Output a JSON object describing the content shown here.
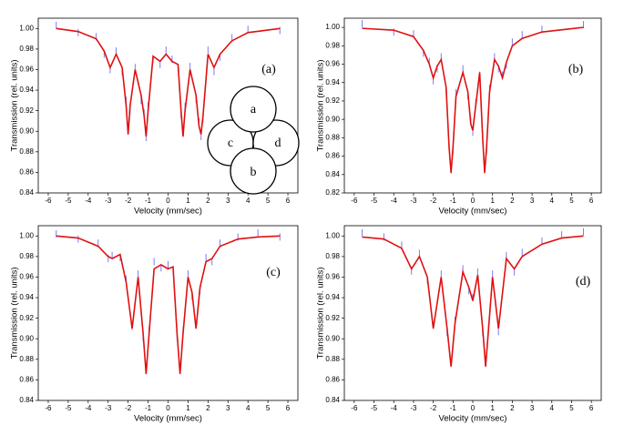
{
  "chart_data": [
    {
      "type": "line",
      "annotation": "(a)",
      "x_label": "Velocity (mm/sec)",
      "y_label": "Transmission (rel. units)",
      "inset_labels": [
        "a",
        "c",
        "d",
        "b"
      ],
      "xlim": [
        -6.5,
        6.5
      ],
      "xticks": [
        -6,
        -5,
        -4,
        -3,
        -2,
        -1,
        0,
        1,
        2,
        3,
        4,
        5,
        6
      ],
      "ylim": [
        0.84,
        1.01
      ],
      "yticks": [
        0.84,
        0.86,
        0.88,
        {
          "value": 0.9,
          "label": "0.90"
        },
        0.92,
        0.94,
        0.96,
        0.98,
        {
          "value": 1,
          "label": "1.00"
        }
      ],
      "x": [
        -5.6,
        -4.5,
        -3.6,
        -3.2,
        -2.9,
        -2.6,
        -2.3,
        -2.1,
        -2,
        -1.9,
        -1.65,
        -1.35,
        -1.2,
        -1.1,
        -1,
        -0.75,
        -0.4,
        -0.1,
        0.2,
        0.5,
        0.65,
        0.75,
        0.85,
        1.1,
        1.4,
        1.55,
        1.65,
        1.75,
        2,
        2.3,
        2.6,
        3.2,
        4,
        5.6
      ],
      "series": [
        {
          "color": "#7b7bf0",
          "mode": "markers",
          "values": [
            1.003,
            0.996,
            0.992,
            0.975,
            0.96,
            0.978,
            0.958,
            0.93,
            0.9,
            0.92,
            0.962,
            0.93,
            0.918,
            0.894,
            0.925,
            0.97,
            0.965,
            0.979,
            0.97,
            0.961,
            0.916,
            0.898,
            0.924,
            0.963,
            0.931,
            0.909,
            0.895,
            0.912,
            0.979,
            0.958,
            0.972,
            0.991,
            0.999,
            0.998
          ]
        },
        {
          "color": "#e01010",
          "mode": "line",
          "values": [
            1.0,
            0.997,
            0.99,
            0.978,
            0.962,
            0.975,
            0.962,
            0.925,
            0.897,
            0.925,
            0.96,
            0.935,
            0.915,
            0.895,
            0.92,
            0.973,
            0.968,
            0.975,
            0.968,
            0.965,
            0.92,
            0.895,
            0.92,
            0.96,
            0.935,
            0.905,
            0.897,
            0.915,
            0.975,
            0.962,
            0.975,
            0.988,
            0.996,
            1.0
          ]
        }
      ]
    },
    {
      "type": "line",
      "annotation": "(b)",
      "x_label": "Velocity (mm/sec)",
      "y_label": "Transmission (rel. units)",
      "xlim": [
        -6.5,
        6.5
      ],
      "xticks": [
        -6,
        -5,
        -4,
        -3,
        -2,
        -1,
        0,
        1,
        2,
        3,
        4,
        5,
        6
      ],
      "ylim": [
        0.82,
        1.01
      ],
      "yticks": [
        0.82,
        0.84,
        0.86,
        0.88,
        {
          "value": 0.9,
          "label": "0.90"
        },
        0.92,
        0.94,
        0.96,
        0.98,
        {
          "value": 1,
          "label": "1.00"
        }
      ],
      "x": [
        -5.6,
        -4,
        -3,
        -2.5,
        -2.2,
        -2,
        -1.8,
        -1.6,
        -1.35,
        -1.2,
        -1.1,
        -1,
        -0.85,
        -0.5,
        -0.25,
        -0.1,
        0,
        0.15,
        0.35,
        0.5,
        0.6,
        0.7,
        0.85,
        1.1,
        1.3,
        1.5,
        1.7,
        2,
        2.5,
        3.5,
        5.6
      ],
      "series": [
        {
          "color": "#7b7bf0",
          "mode": "markers",
          "values": [
            1.004,
            0.995,
            0.993,
            0.972,
            0.963,
            0.942,
            0.955,
            0.968,
            0.931,
            0.874,
            0.845,
            0.866,
            0.929,
            0.955,
            0.926,
            0.898,
            0.886,
            0.918,
            0.948,
            0.884,
            0.845,
            0.866,
            0.934,
            0.968,
            0.955,
            0.948,
            0.959,
            0.984,
            0.992,
            0.998,
            1.003
          ]
        },
        {
          "color": "#e01010",
          "mode": "line",
          "values": [
            0.999,
            0.997,
            0.99,
            0.975,
            0.96,
            0.945,
            0.958,
            0.965,
            0.935,
            0.87,
            0.842,
            0.87,
            0.925,
            0.951,
            0.93,
            0.895,
            0.888,
            0.915,
            0.951,
            0.88,
            0.842,
            0.87,
            0.93,
            0.965,
            0.958,
            0.945,
            0.962,
            0.98,
            0.988,
            0.995,
            1.0
          ]
        }
      ]
    },
    {
      "type": "line",
      "annotation": "(c)",
      "x_label": "Velocity (mm/sec)",
      "y_label": "Transmission (rel. units)",
      "xlim": [
        -6.5,
        6.5
      ],
      "xticks": [
        -6,
        -5,
        -4,
        -3,
        -2,
        -1,
        0,
        1,
        2,
        3,
        4,
        5,
        6
      ],
      "ylim": [
        0.84,
        1.01
      ],
      "yticks": [
        0.84,
        0.86,
        0.88,
        {
          "value": 0.9,
          "label": "0.90"
        },
        0.92,
        0.94,
        0.96,
        0.98,
        {
          "value": 1,
          "label": "1.00"
        }
      ],
      "x": [
        -5.6,
        -4.5,
        -3.5,
        -3,
        -2.8,
        -2.4,
        -2.1,
        -1.8,
        -1.5,
        -1.25,
        -1.1,
        -0.95,
        -0.7,
        -0.35,
        0,
        0.25,
        0.45,
        0.6,
        0.75,
        1,
        1.2,
        1.4,
        1.6,
        1.9,
        2.2,
        2.6,
        3.5,
        4.5,
        5.6
      ],
      "series": [
        {
          "color": "#7b7bf0",
          "mode": "markers",
          "values": [
            1.002,
            0.997,
            0.993,
            0.978,
            0.981,
            0.979,
            0.958,
            0.912,
            0.963,
            0.901,
            0.869,
            0.908,
            0.975,
            0.969,
            0.972,
            0.967,
            0.902,
            0.869,
            0.908,
            0.963,
            0.941,
            0.913,
            0.947,
            0.979,
            0.975,
            0.993,
            0.999,
            1.003,
            0.999
          ]
        },
        {
          "color": "#e01010",
          "mode": "line",
          "values": [
            1.0,
            0.998,
            0.99,
            0.98,
            0.978,
            0.982,
            0.955,
            0.91,
            0.96,
            0.905,
            0.866,
            0.905,
            0.968,
            0.972,
            0.968,
            0.97,
            0.905,
            0.866,
            0.905,
            0.96,
            0.945,
            0.91,
            0.95,
            0.975,
            0.978,
            0.99,
            0.997,
            0.999,
            1.0
          ]
        }
      ]
    },
    {
      "type": "line",
      "annotation": "(d)",
      "x_label": "Velocity (mm/sec)",
      "y_label": "Transmission (rel. units)",
      "xlim": [
        -6.5,
        6.5
      ],
      "xticks": [
        -6,
        -5,
        -4,
        -3,
        -2,
        -1,
        0,
        1,
        2,
        3,
        4,
        5,
        6
      ],
      "ylim": [
        0.84,
        1.01
      ],
      "yticks": [
        0.84,
        0.86,
        0.88,
        {
          "value": 0.9,
          "label": "0.90"
        },
        0.92,
        0.94,
        0.96,
        0.98,
        {
          "value": 1,
          "label": "1.00"
        }
      ],
      "x": [
        -5.6,
        -4.5,
        -3.6,
        -3.1,
        -2.7,
        -2.3,
        -2,
        -1.6,
        -1.3,
        -1.1,
        -0.9,
        -0.5,
        -0.2,
        0,
        0.25,
        0.5,
        0.65,
        0.8,
        1,
        1.3,
        1.7,
        2.1,
        2.5,
        3.5,
        4.5,
        5.6
      ],
      "series": [
        {
          "color": "#7b7bf0",
          "mode": "markers",
          "values": [
            1.003,
            0.999,
            0.991,
            0.966,
            0.983,
            0.957,
            0.913,
            0.963,
            0.906,
            0.876,
            0.918,
            0.968,
            0.947,
            0.94,
            0.965,
            0.906,
            0.876,
            0.913,
            0.963,
            0.907,
            0.981,
            0.965,
            0.984,
            0.995,
            1.001,
            1.004
          ]
        },
        {
          "color": "#e01010",
          "mode": "line",
          "values": [
            0.999,
            0.997,
            0.988,
            0.968,
            0.98,
            0.96,
            0.91,
            0.96,
            0.91,
            0.873,
            0.915,
            0.965,
            0.95,
            0.937,
            0.962,
            0.91,
            0.873,
            0.91,
            0.96,
            0.91,
            0.978,
            0.968,
            0.98,
            0.992,
            0.998,
            1.0
          ]
        }
      ]
    }
  ]
}
